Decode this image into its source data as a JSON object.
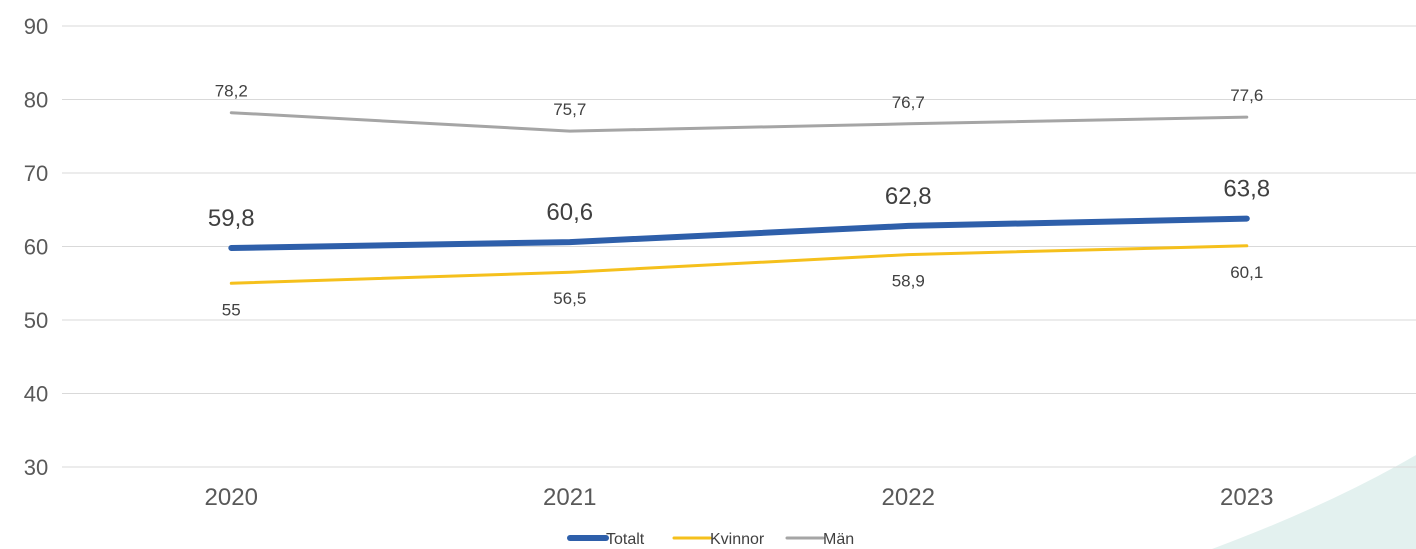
{
  "chart_data": {
    "type": "line",
    "categories": [
      "2020",
      "2021",
      "2022",
      "2023"
    ],
    "ylim": [
      30,
      90
    ],
    "yticks": [
      30,
      40,
      50,
      60,
      70,
      80,
      90
    ],
    "grid": true,
    "legend_position": "bottom",
    "series": [
      {
        "name": "Totalt",
        "values": [
          59.8,
          60.6,
          62.8,
          63.8
        ],
        "labels": [
          "59,8",
          "60,6",
          "62,8",
          "63,8"
        ],
        "color": "#2e5faa"
      },
      {
        "name": "Kvinnor",
        "values": [
          55,
          56.5,
          58.9,
          60.1
        ],
        "labels": [
          "55",
          "56,5",
          "58,9",
          "60,1"
        ],
        "color": "#f5c01c"
      },
      {
        "name": "Män",
        "values": [
          78.2,
          75.7,
          76.7,
          77.6
        ],
        "labels": [
          "78,2",
          "75,7",
          "76,7",
          "77,6"
        ],
        "color": "#a5a5a5"
      }
    ]
  },
  "decoration": {
    "corner_color": "#e3f1ef"
  }
}
